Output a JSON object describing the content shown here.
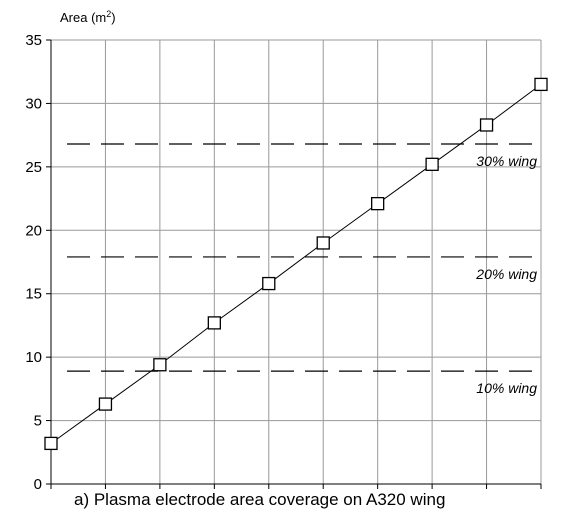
{
  "chart_data": {
    "type": "line",
    "ylabel_prefix": "Area (m",
    "ylabel_sup": "2",
    "ylabel_suffix": ")",
    "caption": "a) Plasma electrode area coverage on A320 wing",
    "xlim": [
      0,
      9
    ],
    "ylim": [
      0,
      35
    ],
    "yticks": [
      0,
      5,
      10,
      15,
      20,
      25,
      30,
      35
    ],
    "grid": true,
    "series": [
      {
        "x": [
          0,
          1,
          2,
          3,
          4,
          5,
          6,
          7,
          8,
          9
        ],
        "values": [
          3.2,
          6.3,
          9.4,
          12.7,
          15.8,
          19.0,
          22.1,
          25.2,
          28.3,
          31.5
        ],
        "marker": "square-open"
      }
    ],
    "reference_lines": [
      {
        "value": 26.8,
        "label": "30% wing"
      },
      {
        "value": 17.9,
        "label": "20% wing"
      },
      {
        "value": 8.9,
        "label": "10% wing"
      }
    ],
    "colors": {
      "line": "#000000",
      "grid": "#999999",
      "marker_fill": "#ffffff"
    }
  }
}
